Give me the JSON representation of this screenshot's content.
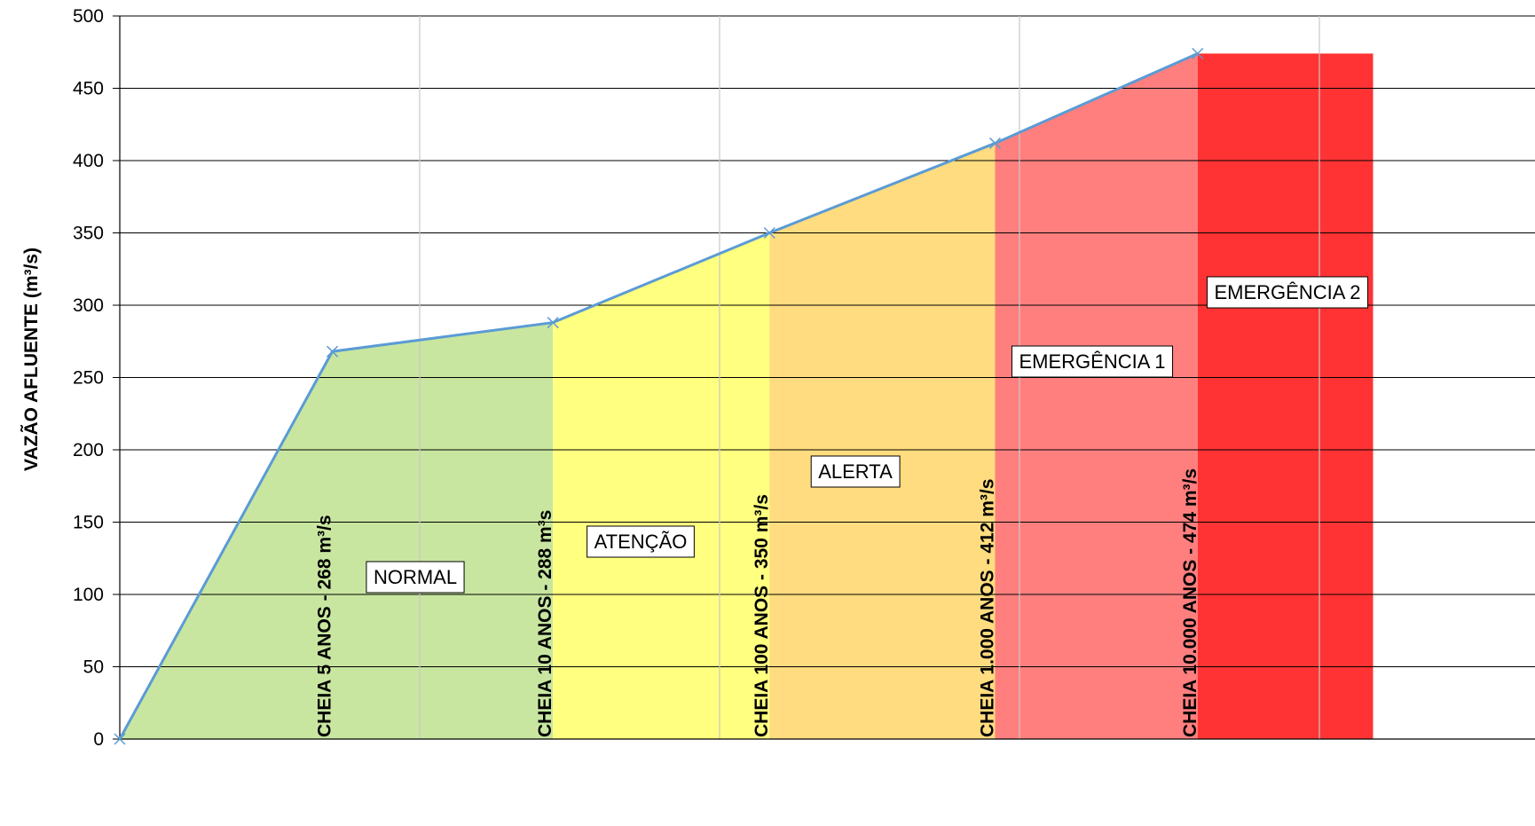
{
  "chart_data": {
    "type": "area",
    "ylabel": "VAZÃO AFLUENTE (m³/s)",
    "xlabel": "",
    "ylim": [
      0,
      500
    ],
    "yticks": [
      0,
      50,
      100,
      150,
      200,
      250,
      300,
      350,
      400,
      450,
      500
    ],
    "xlim": [
      0,
      10
    ],
    "grid": true,
    "series": [
      {
        "type": "line",
        "color": "#5b9bd5",
        "marker": "x",
        "x": [
          0,
          2.12,
          4.32,
          6.48,
          8.73,
          10.75
        ],
        "y": [
          0,
          268,
          288,
          350,
          412,
          474
        ]
      }
    ],
    "zones": [
      {
        "label": "NORMAL",
        "x_start": 0,
        "x_end": 4.32,
        "top_y": [
          [
            0,
            0
          ],
          [
            2.12,
            268
          ],
          [
            4.32,
            288
          ]
        ],
        "color": "#c8e6a0"
      },
      {
        "label": "ATENÇÃO",
        "x_start": 4.32,
        "x_end": 6.48,
        "top_y": [
          [
            4.32,
            288
          ],
          [
            6.48,
            350
          ]
        ],
        "color": "#ffff80"
      },
      {
        "label": "ALERTA",
        "x_start": 6.48,
        "x_end": 8.73,
        "top_y": [
          [
            6.48,
            350
          ],
          [
            8.73,
            412
          ]
        ],
        "color": "#ffdc7f"
      },
      {
        "label": "EMERGÊNCIA 1",
        "x_start": 8.73,
        "x_end": 10.75,
        "top_y": [
          [
            8.73,
            412
          ],
          [
            10.75,
            474
          ]
        ],
        "color": "#ff7f7f"
      },
      {
        "label": "EMERGÊNCIA 2",
        "x_start": 10.75,
        "x_end": 12.5,
        "top_y": [
          [
            10.75,
            474
          ],
          [
            12.5,
            474
          ]
        ],
        "color": "#ff3333"
      }
    ],
    "thresholds": [
      {
        "x": 2.12,
        "label": "CHEIA 5 ANOS - 268 m³/s"
      },
      {
        "x": 4.32,
        "label": "CHEIA 10 ANOS - 288 m³s"
      },
      {
        "x": 6.48,
        "label": "CHEIA 100 ANOS - 350 m³/s"
      },
      {
        "x": 8.73,
        "label": "CHEIA 1.000 ANOS - 412 m³/s"
      },
      {
        "x": 10.75,
        "label": "CHEIA 10.000 ANOS - 474 m³/s"
      }
    ]
  }
}
